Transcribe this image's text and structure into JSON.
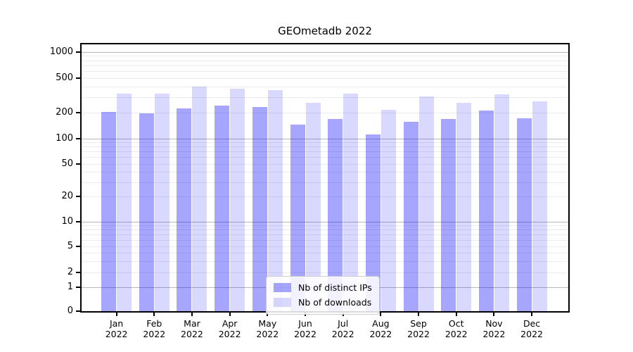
{
  "title": "GEOmetadb 2022",
  "chart_data": {
    "type": "bar",
    "title": "GEOmetadb 2022",
    "y_scale": "pseudo-log",
    "ylim": [
      0,
      1300
    ],
    "grid": "horizontal log minor + major gridlines",
    "legend_position": "lower center",
    "y_ticks": [
      0,
      1,
      2,
      5,
      10,
      20,
      50,
      100,
      200,
      500,
      1000
    ],
    "categories": [
      "Jan 2022",
      "Feb 2022",
      "Mar 2022",
      "Apr 2022",
      "May 2022",
      "Jun 2022",
      "Jul 2022",
      "Aug 2022",
      "Sep 2022",
      "Oct 2022",
      "Nov 2022",
      "Dec 2022"
    ],
    "series": [
      {
        "name": "Nb of distinct IPs",
        "color": "rgba(0,0,255,0.35)",
        "values": [
          203,
          197,
          224,
          243,
          233,
          144,
          170,
          112,
          157,
          168,
          213,
          173
        ]
      },
      {
        "name": "Nb of downloads",
        "color": "rgba(0,0,255,0.15)",
        "values": [
          332,
          330,
          401,
          376,
          367,
          260,
          329,
          216,
          309,
          258,
          326,
          272
        ]
      }
    ]
  },
  "colors": {
    "background": "#ffffff",
    "axis": "#000000",
    "grid_major": "#b8b8b8",
    "grid_minor": "#ececec",
    "bar_distinct_ips": "rgba(0,0,255,0.35)",
    "bar_downloads": "rgba(0,0,255,0.15)"
  }
}
